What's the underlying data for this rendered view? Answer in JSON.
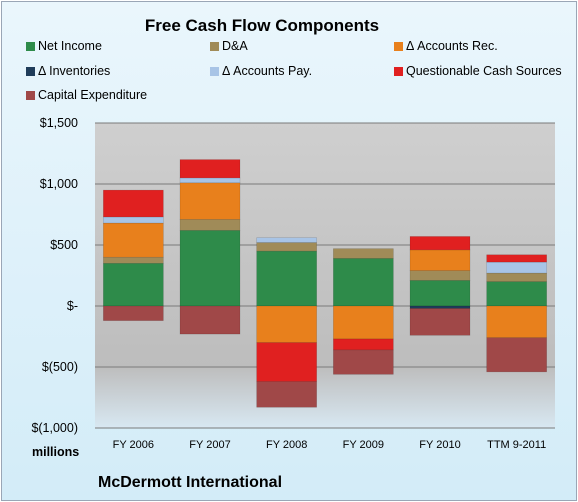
{
  "chart_data": {
    "type": "bar",
    "stacked": true,
    "title": "Free Cash Flow Components",
    "ylabel": "millions",
    "ylim": [
      -1000,
      1500
    ],
    "yticks": [
      1500,
      1000,
      500,
      0,
      -500,
      -1000
    ],
    "ytick_labels": [
      "$1,500",
      "$1,000",
      "$500",
      "$-",
      "$(500)",
      "$(1,000)"
    ],
    "categories": [
      "FY 2006",
      "FY 2007",
      "FY 2008",
      "FY 2009",
      "FY 2010",
      "TTM 9-2011"
    ],
    "grid": true,
    "legend_position": "top",
    "series": [
      {
        "name": "Net Income",
        "color": "#2e8b4a",
        "values": [
          350,
          620,
          450,
          390,
          210,
          200
        ]
      },
      {
        "name": "D&A",
        "color": "#a08b58",
        "values": [
          50,
          90,
          70,
          80,
          80,
          70
        ]
      },
      {
        "name": "Δ Accounts Rec.",
        "color": "#e8801c",
        "values": [
          280,
          300,
          -300,
          -270,
          170,
          -260
        ]
      },
      {
        "name": "Δ Inventories",
        "color": "#1f3c5a",
        "values": [
          0,
          0,
          0,
          0,
          -20,
          0
        ]
      },
      {
        "name": "Δ Accounts Pay.",
        "color": "#a8c4e6",
        "values": [
          50,
          40,
          40,
          0,
          0,
          90
        ]
      },
      {
        "name": "Questionable Cash Sources",
        "color": "#e02020",
        "values": [
          220,
          150,
          -320,
          -90,
          110,
          60
        ]
      },
      {
        "name": "Capital Expenditure",
        "color": "#a04848",
        "values": [
          -120,
          -230,
          -210,
          -200,
          -220,
          -280
        ]
      }
    ]
  },
  "footer": {
    "company": "McDermott International"
  }
}
